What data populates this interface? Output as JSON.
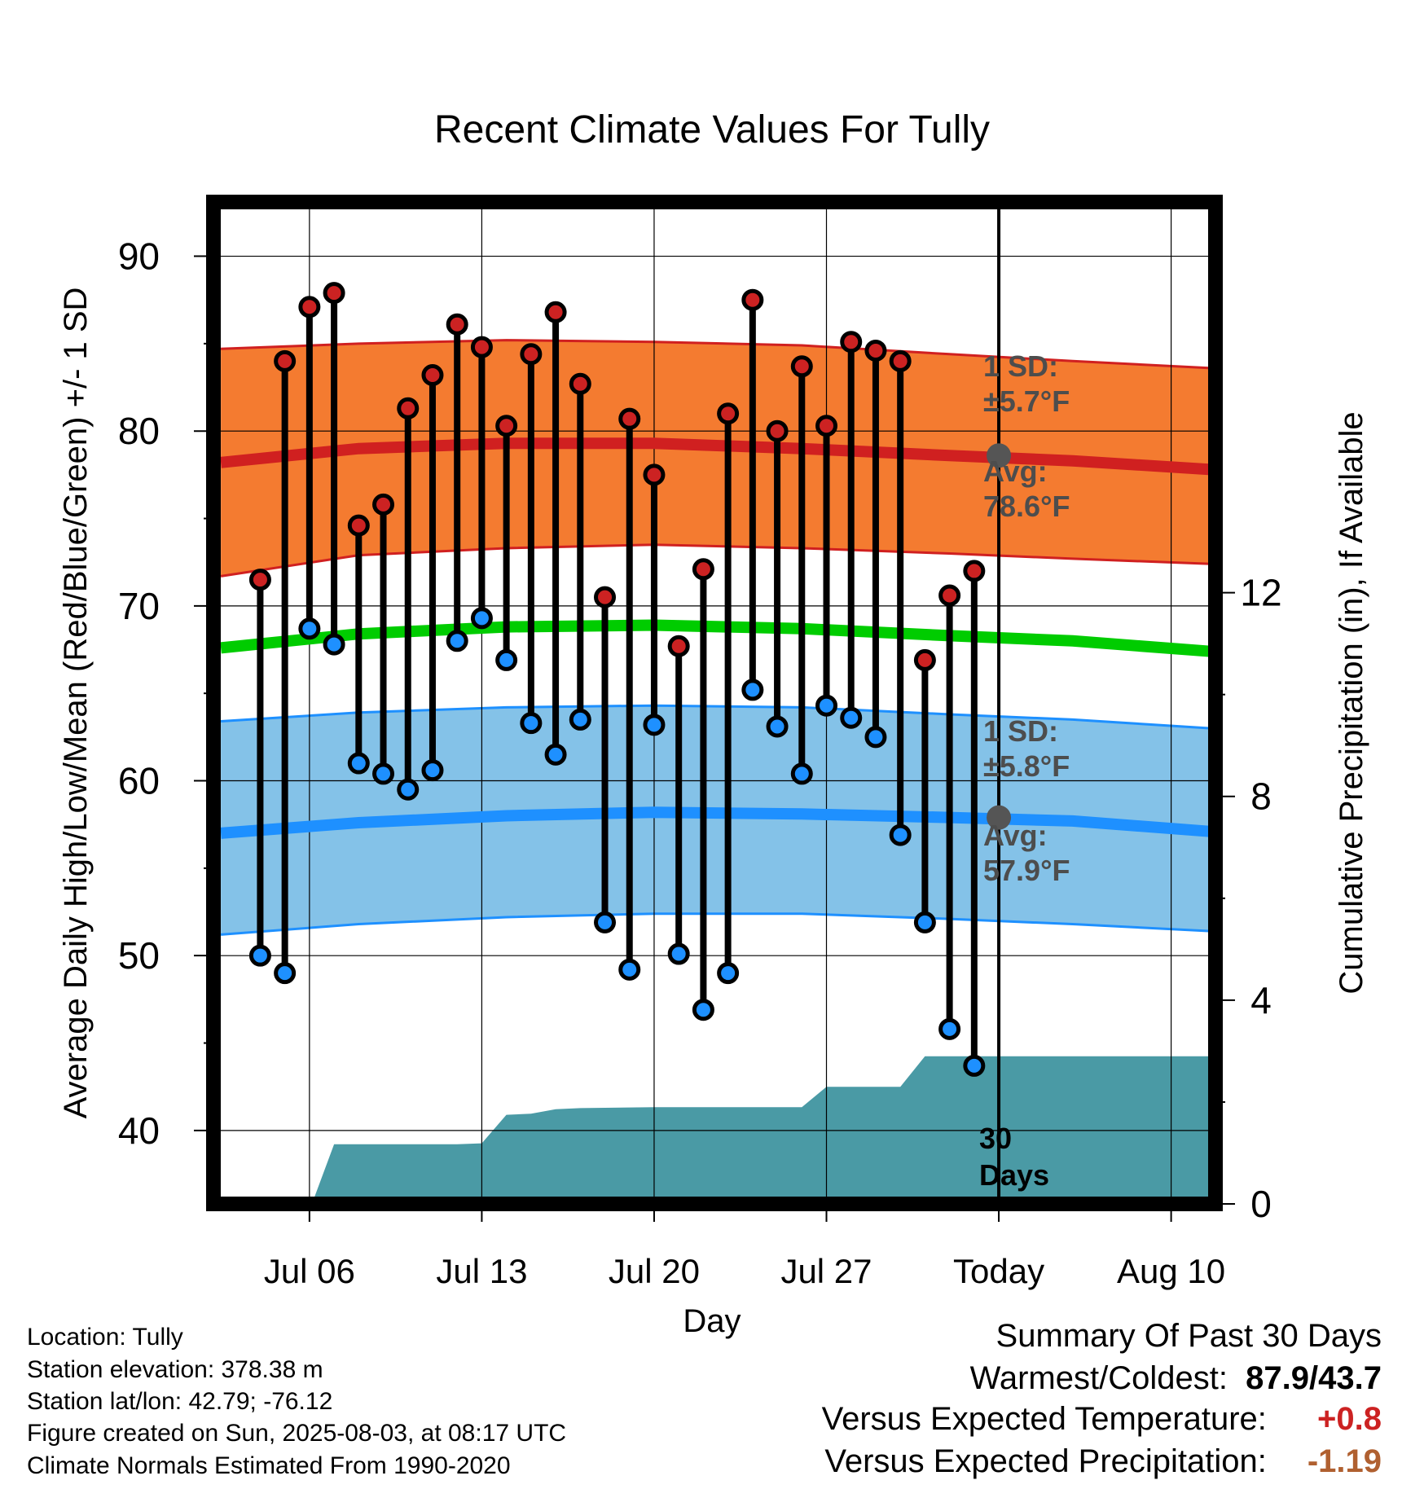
{
  "chart_data": {
    "type": "line",
    "title": "Recent Climate Values For Tully",
    "xlabel": "Day",
    "ylabel": "Average Daily High/Low/Mean (Red/Blue/Green) +/- 1 SD",
    "y2label": "Cumulative Precipitation (in), If Available",
    "x_tick_labels": [
      "Jul 06",
      "Jul 13",
      "Jul 20",
      "Jul 27",
      "Today",
      "Aug 10"
    ],
    "x_tick_days": [
      6,
      13,
      20,
      27,
      34,
      41
    ],
    "xlim": [
      2.1,
      42.8
    ],
    "ylim": [
      35.8,
      93.1
    ],
    "y_ticks": [
      40,
      50,
      60,
      70,
      80,
      90
    ],
    "y2lim": [
      0,
      19.67
    ],
    "y2_ticks": [
      0,
      4,
      8,
      12
    ],
    "grid": true,
    "today_day": 34,
    "series": [
      {
        "name": "Daily High",
        "color": "#cc2222",
        "x": [
          4,
          5,
          6,
          7,
          8,
          9,
          10,
          11,
          12,
          13,
          14,
          15,
          16,
          17,
          18,
          19,
          20,
          21,
          22,
          23,
          24,
          25,
          26,
          27,
          28,
          29,
          30,
          31,
          32,
          33
        ],
        "values": [
          71.5,
          84.0,
          87.1,
          87.9,
          74.6,
          75.8,
          81.3,
          83.2,
          86.1,
          84.8,
          80.3,
          84.4,
          86.8,
          82.7,
          70.5,
          80.7,
          77.5,
          67.7,
          72.1,
          81.0,
          87.5,
          80.0,
          83.7,
          80.3,
          85.1,
          84.6,
          84.0,
          66.9,
          70.6,
          72.0
        ]
      },
      {
        "name": "Daily Low",
        "color": "#1e90ff",
        "x": [
          4,
          5,
          6,
          7,
          8,
          9,
          10,
          11,
          12,
          13,
          14,
          15,
          16,
          17,
          18,
          19,
          20,
          21,
          22,
          23,
          24,
          25,
          26,
          27,
          28,
          29,
          30,
          31,
          32,
          33
        ],
        "values": [
          50.0,
          49.0,
          68.7,
          67.8,
          61.0,
          60.4,
          59.5,
          60.6,
          68.0,
          69.3,
          66.9,
          63.3,
          61.5,
          63.5,
          51.9,
          49.2,
          63.2,
          50.1,
          46.9,
          49.0,
          65.2,
          63.1,
          60.4,
          64.3,
          63.6,
          62.5,
          56.9,
          51.9,
          45.8,
          43.7
        ]
      },
      {
        "name": "Cumulative Precipitation",
        "color": "#4a9aa5",
        "x": [
          5.2,
          6.1,
          7.0,
          11.0,
          12.0,
          13.0,
          14.0,
          15.0,
          16.0,
          17.0,
          20.0,
          26.0,
          27.0,
          28.0,
          29.0,
          30.0,
          31.0,
          32.0,
          42.6
        ],
        "values": [
          0,
          0,
          1.17,
          1.17,
          1.17,
          1.19,
          1.75,
          1.77,
          1.86,
          1.88,
          1.9,
          1.9,
          2.3,
          2.3,
          2.3,
          2.3,
          2.9,
          2.9,
          2.9
        ]
      }
    ],
    "normals": {
      "x": [
        2.4,
        8,
        14,
        20,
        26,
        32,
        37,
        42.6
      ],
      "high_mean": [
        78.2,
        79.0,
        79.3,
        79.3,
        79.0,
        78.6,
        78.3,
        77.8
      ],
      "high_upper": [
        84.7,
        85.0,
        85.2,
        85.1,
        84.9,
        84.4,
        84.0,
        83.6
      ],
      "high_lower": [
        71.7,
        72.9,
        73.3,
        73.5,
        73.3,
        73.0,
        72.7,
        72.4
      ],
      "mean": [
        67.6,
        68.4,
        68.8,
        68.9,
        68.7,
        68.3,
        68.0,
        67.4
      ],
      "low_mean": [
        57.0,
        57.6,
        58.0,
        58.2,
        58.1,
        57.9,
        57.7,
        57.1
      ],
      "low_upper": [
        63.4,
        63.9,
        64.2,
        64.3,
        64.2,
        63.8,
        63.5,
        63.0
      ],
      "low_lower": [
        51.2,
        51.8,
        52.2,
        52.4,
        52.4,
        52.1,
        51.8,
        51.4
      ],
      "colors": {
        "high_band": "#f47b30",
        "high_line": "#d02020",
        "mean_line": "#00cc00",
        "low_band": "#84c2e8",
        "low_line": "#1e90ff"
      }
    },
    "today_points": {
      "high_avg": 78.6,
      "low_avg": 57.9
    },
    "annotations": {
      "high_sd_label": "1 SD:",
      "high_sd_value": "±5.7°F",
      "high_avg_label": "Avg:",
      "high_avg_value": "78.6°F",
      "low_sd_label": "1 SD:",
      "low_sd_value": "±5.8°F",
      "low_avg_label": "Avg:",
      "low_avg_value": "57.9°F",
      "days_num": "30",
      "days_word": "Days"
    }
  },
  "info": {
    "location": "Location: Tully",
    "elevation": "Station elevation: 378.38 m",
    "latlon": "Station lat/lon: 42.79; -76.12",
    "created": "Figure created on Sun, 2025-08-03, at 08:17 UTC",
    "normals_period": "Climate Normals Estimated From 1990-2020"
  },
  "summary": {
    "title": "Summary Of Past 30 Days",
    "warm_cold_label": "Warmest/Coldest:",
    "warm_cold_value": "87.9/43.7",
    "temp_label": "Versus Expected Temperature:",
    "temp_value": "+0.8",
    "temp_color": "#cc2222",
    "precip_label": "Versus Expected Precipitation:",
    "precip_value": "-1.19",
    "precip_color": "#b06030"
  }
}
